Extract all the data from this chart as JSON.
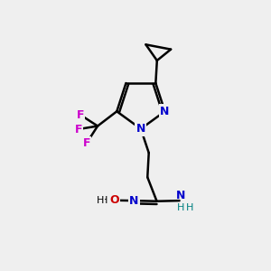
{
  "bg_color": "#efefef",
  "bond_color": "#000000",
  "n_color": "#0000cc",
  "o_color": "#cc0000",
  "f_color": "#cc00cc",
  "nh_color": "#008080",
  "line_width": 1.8,
  "fig_size": [
    3.0,
    3.0
  ],
  "dpi": 100,
  "xlim": [
    0,
    10
  ],
  "ylim": [
    0,
    10
  ]
}
